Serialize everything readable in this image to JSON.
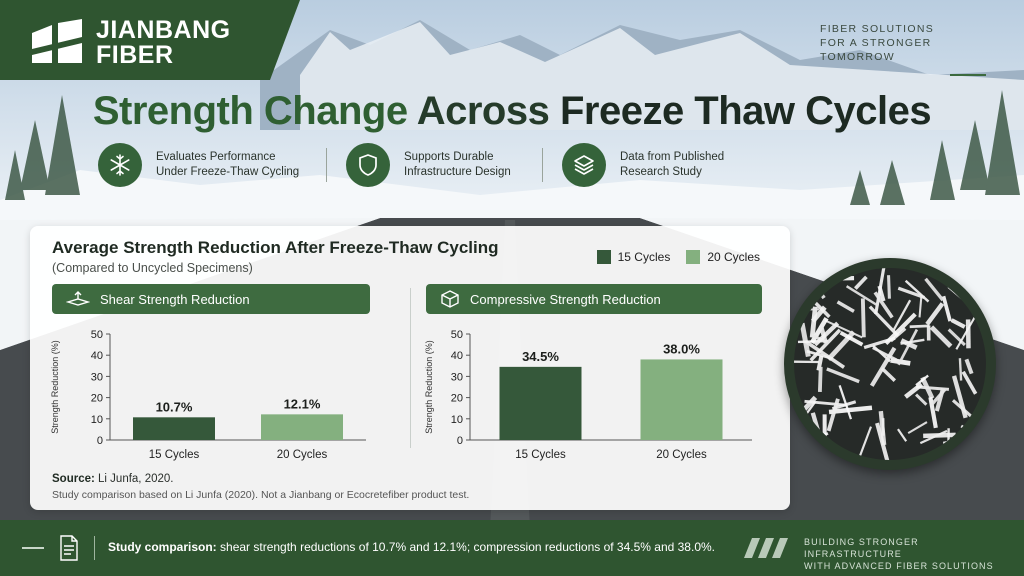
{
  "brand": {
    "name_line1": "JIANBANG",
    "name_line2": "FIBER"
  },
  "tagline": {
    "line1": "FIBER SOLUTIONS",
    "line2": "FOR A STRONGER TOMORROW"
  },
  "title": {
    "part1": "Strength Change ",
    "part2": "Across ",
    "part3": "Freeze Thaw Cycles"
  },
  "features": [
    {
      "icon": "snowflake-icon",
      "line1": "Evaluates Performance",
      "line2": "Under Freeze-Thaw Cycling"
    },
    {
      "icon": "shield-icon",
      "line1": "Supports Durable",
      "line2": "Infrastructure Design"
    },
    {
      "icon": "layers-icon",
      "line1": "Data from Published",
      "line2": "Research Study"
    }
  ],
  "card": {
    "title": "Average Strength Reduction After Freeze-Thaw Cycling",
    "subtitle": "(Compared to Uncycled Specimens)",
    "source_label": "Source:",
    "source_text": " Li Junfa, 2020.",
    "note": "Study comparison based on Li Junfa (2020). Not a Jianbang or Ecocretefiber product test."
  },
  "colors": {
    "dark_green": "#35583a",
    "light_green": "#84b07f",
    "brand_green": "#2f5530"
  },
  "chart_data": [
    {
      "type": "bar",
      "title": "Shear Strength Reduction",
      "categories": [
        "15 Cycles",
        "20 Cycles"
      ],
      "series": [
        {
          "name": "15 Cycles",
          "values": [
            10.7,
            null
          ],
          "color": "#35583a"
        },
        {
          "name": "20 Cycles",
          "values": [
            null,
            12.1
          ],
          "color": "#84b07f"
        }
      ],
      "data_labels": [
        "10.7%",
        "12.1%"
      ],
      "ylabel": "Strength Reduction (%)",
      "ylim": [
        0,
        50
      ],
      "yticks": [
        "0",
        "10",
        "20",
        "30",
        "40",
        "50"
      ],
      "grid": false,
      "legend": "top-right"
    },
    {
      "type": "bar",
      "title": "Compressive Strength Reduction",
      "categories": [
        "15 Cycles",
        "20 Cycles"
      ],
      "series": [
        {
          "name": "15 Cycles",
          "values": [
            34.5,
            null
          ],
          "color": "#35583a"
        },
        {
          "name": "20 Cycles",
          "values": [
            null,
            38.0
          ],
          "color": "#84b07f"
        }
      ],
      "data_labels": [
        "34.5%",
        "38.0%"
      ],
      "ylabel": "Strength Reduction (%)",
      "ylim": [
        0,
        50
      ],
      "yticks": [
        "0",
        "10",
        "20",
        "30",
        "40",
        "50"
      ],
      "grid": false,
      "legend": "top-right"
    }
  ],
  "legend": [
    {
      "label": "15 Cycles",
      "color": "#35583a"
    },
    {
      "label": "20 Cycles",
      "color": "#84b07f"
    }
  ],
  "footer": {
    "bold": "Study comparison:",
    "text": " shear strength reductions of 10.7% and 12.1%; compression reductions of 34.5% and 38.0%.",
    "right_line1": "BUILDING STRONGER INFRASTRUCTURE",
    "right_line2": "WITH ADVANCED FIBER SOLUTIONS"
  }
}
